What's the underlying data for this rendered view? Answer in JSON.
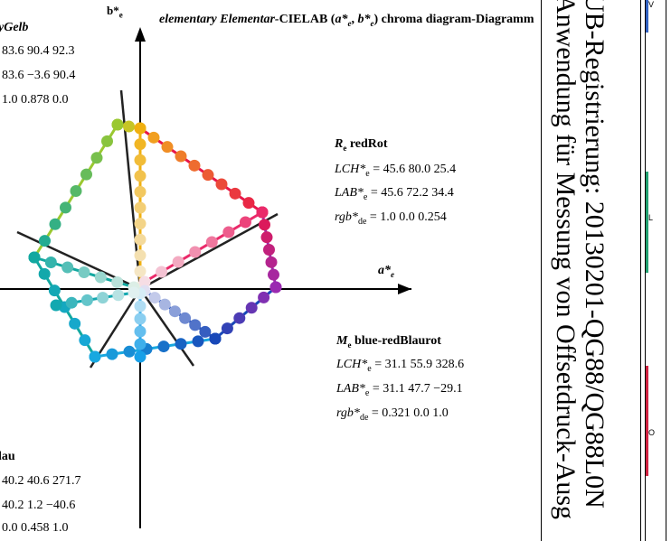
{
  "title": {
    "italic_part": "elementary Elementar-",
    "bold_part": "CIELAB (",
    "a_label": "a*",
    "a_sub": "e",
    "sep": ", ",
    "b_label": "b*",
    "b_sub": "e",
    "tail": ") chroma diagram-Diagramm"
  },
  "axis_a": {
    "label": "a*",
    "sub": "e"
  },
  "axis_b": {
    "label": "b*",
    "sub": "e"
  },
  "yellow_block": {
    "name": "yGelb",
    "line1": "83.6   90.4   92.3",
    "line2": "83.6   −3.6   90.4",
    "line3": "1.0   0.878   0.0"
  },
  "red_block": {
    "name_letter": "R",
    "name_sub": "e",
    "name_word": " redRot",
    "lch_label": "LCH*",
    "lch_sub": "e",
    "lch_values": " = 45.6   80.0   25.4",
    "lab_label": "LAB*",
    "lab_sub": "e",
    "lab_values": " = 45.6   72.2   34.4",
    "rgb_label": "rgb*",
    "rgb_sub": "de",
    "rgb_values": " = 1.0   0.0   0.254"
  },
  "magenta_block": {
    "name_letter": "M",
    "name_sub": "e",
    "name_word": " blue-redBlaurot",
    "lch_label": "LCH*",
    "lch_sub": "e",
    "lch_values": " = 31.1   55.9   328.6",
    "lab_label": "LAB*",
    "lab_sub": "e",
    "lab_values": " = 31.1   47.7   −29.1",
    "rgb_label": "rgb*",
    "rgb_sub": "de",
    "rgb_values": " = 0.321   0.0   1.0"
  },
  "blue_block": {
    "name": "lau",
    "line1": "40.2   40.6   271.7",
    "line2": "40.2   1.2   −40.6",
    "line3": "0.0   0.458   1.0"
  },
  "right_panel": {
    "line1": "UB-Registrierung: 20130201-QG88/QG88L0N",
    "line2": "Anwendung für Messung von Offsetdruck-Ausg",
    "label_v": "V",
    "label_l": "L",
    "label_o": "O"
  },
  "colors": {
    "yellow": "#f2c21a",
    "red": "#e8174a",
    "magenta": "#a02aa8",
    "blue": "#1464c8",
    "cyan": "#00a8b0",
    "green": "#2aa848",
    "accent_v": "#3060c0",
    "accent_l": "#20a070",
    "accent_o": "#d02040"
  }
}
